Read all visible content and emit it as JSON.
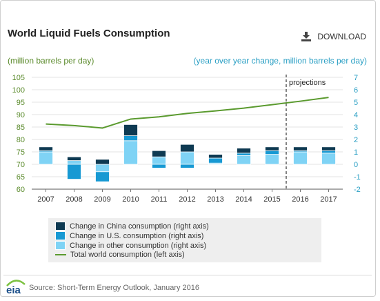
{
  "header": {
    "title": "World Liquid Fuels Consumption",
    "download_label": "DOWNLOAD"
  },
  "axes": {
    "left_unit": "(million barrels per day)",
    "right_unit": "(year over year change, million barrels per day)"
  },
  "colors": {
    "china": "#0e3a52",
    "us": "#1799d3",
    "other": "#7fd3f5",
    "total": "#5a9a2e",
    "left_axis_text": "#5a8a2b",
    "right_axis_text": "#2a9fc4"
  },
  "legend": {
    "items": [
      {
        "label": "Change in China consumption (right axis)",
        "color": "#0e3a52"
      },
      {
        "label": "Change in U.S. consumption (right axis)",
        "color": "#1799d3"
      },
      {
        "label": "Change in other consumption (right axis)",
        "color": "#7fd3f5"
      },
      {
        "label": "Total world consumption (left axis)",
        "color": "#5a9a2e"
      }
    ]
  },
  "source": "Source: Short-Term Energy Outlook, January 2016",
  "chart_data": {
    "type": "bar",
    "categories": [
      "2007",
      "2008",
      "2009",
      "2010",
      "2011",
      "2012",
      "2013",
      "2014",
      "2015",
      "2016",
      "2017"
    ],
    "series": [
      {
        "name": "Change in China consumption (right axis)",
        "values": [
          0.3,
          0.3,
          0.4,
          0.9,
          0.5,
          0.6,
          0.3,
          0.4,
          0.3,
          0.3,
          0.3
        ]
      },
      {
        "name": "Change in U.S. consumption (right axis)",
        "values": [
          0.1,
          -1.2,
          -0.8,
          0.4,
          -0.3,
          -0.3,
          0.4,
          0.2,
          0.3,
          0.1,
          0.2
        ]
      },
      {
        "name": "Change in other consumption (right axis)",
        "values": [
          1.0,
          0.3,
          -0.6,
          1.9,
          0.6,
          1.0,
          0.1,
          0.7,
          0.8,
          1.0,
          0.9
        ]
      },
      {
        "name": "Total world consumption (left axis)",
        "axis": "left",
        "type": "line",
        "values": [
          86.2,
          85.6,
          84.6,
          88.2,
          89.1,
          90.5,
          91.5,
          92.6,
          94.0,
          95.4,
          96.9
        ]
      }
    ],
    "ylim_left": [
      60,
      105
    ],
    "yticks_left": [
      "60",
      "65",
      "70",
      "75",
      "80",
      "85",
      "90",
      "95",
      "100",
      "105"
    ],
    "ylim_right": [
      -2,
      7
    ],
    "yticks_right": [
      "-2",
      "-1",
      "0",
      "1",
      "2",
      "3",
      "4",
      "5",
      "6",
      "7"
    ],
    "grid": true,
    "projection_start": "2016",
    "projection_label": "projections",
    "legend_position": "bottom"
  }
}
